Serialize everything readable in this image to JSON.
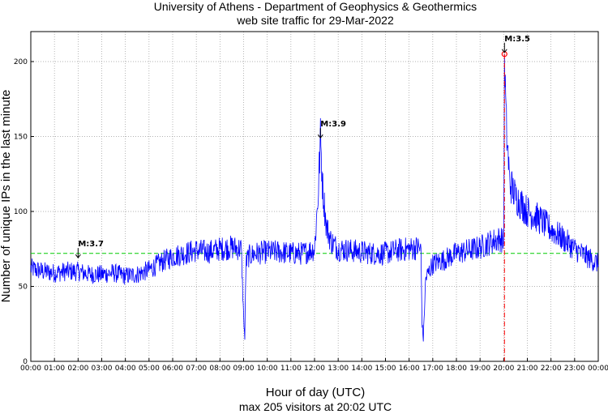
{
  "chart_data": {
    "type": "line",
    "title": "University of Athens - Department of Geophysics & Geothermics",
    "subtitle": "web site traffic for 29-Mar-2022",
    "xlabel": "Hour of day (UTC)",
    "ylabel": "Number of unique IPs in the last minute",
    "footer": "max 205 visitors at 20:02 UTC",
    "xlim": [
      0,
      24
    ],
    "ylim": [
      0,
      220
    ],
    "x_tick_labels": [
      "00:00",
      "01:00",
      "02:00",
      "03:00",
      "04:00",
      "05:00",
      "06:00",
      "07:00",
      "08:00",
      "09:00",
      "10:00",
      "11:00",
      "12:00",
      "13:00",
      "14:00",
      "15:00",
      "16:00",
      "17:00",
      "18:00",
      "19:00",
      "20:00",
      "21:00",
      "22:00",
      "23:00",
      "00:00"
    ],
    "y_ticks": [
      0,
      50,
      100,
      150,
      200
    ],
    "y_tick_labels": [
      "0",
      "50",
      "100",
      "150",
      "200"
    ],
    "grid": true,
    "mean_line": 72,
    "series": [
      {
        "color": "#0000ff",
        "x": [
          0,
          0.5,
          1,
          1.5,
          2,
          2.5,
          3,
          3.5,
          4,
          4.5,
          5,
          5.5,
          6,
          6.5,
          7,
          7.5,
          8,
          8.5,
          8.9,
          9.0,
          9.05,
          9.1,
          9.2,
          9.5,
          10,
          10.5,
          11,
          11.5,
          12,
          12.15,
          12.25,
          12.35,
          12.5,
          12.7,
          13,
          13.5,
          14,
          14.5,
          15,
          15.5,
          16,
          16.4,
          16.5,
          16.55,
          16.6,
          16.7,
          16.9,
          17,
          17.5,
          18,
          18.5,
          19,
          19.5,
          19.9,
          20.0,
          20.033,
          20.1,
          20.25,
          20.5,
          21,
          21.5,
          22,
          22.5,
          23,
          23.5,
          24
        ],
        "y": [
          62,
          60,
          59,
          60,
          60,
          58,
          58,
          59,
          57,
          58,
          61,
          66,
          70,
          72,
          74,
          73,
          75,
          76,
          75,
          30,
          15,
          65,
          70,
          72,
          73,
          73,
          72,
          72,
          75,
          110,
          148,
          115,
          90,
          80,
          75,
          74,
          73,
          72,
          72,
          74,
          75,
          76,
          74,
          25,
          15,
          55,
          62,
          65,
          68,
          72,
          74,
          76,
          80,
          82,
          78,
          205,
          160,
          120,
          110,
          100,
          95,
          88,
          82,
          75,
          70,
          65
        ]
      }
    ],
    "annotations": [
      {
        "label": "M:3.7",
        "x": 2.0,
        "y": 68
      },
      {
        "label": "M:3.9",
        "x": 12.25,
        "y": 148
      },
      {
        "label": "M:3.5",
        "x": 20.033,
        "y": 205
      }
    ],
    "max_marker": {
      "x": 20.033,
      "y": 205,
      "color": "#ff0000"
    },
    "colors": {
      "series": "#0000ff",
      "mean_line": "#00cc00",
      "max_line": "#ff0000",
      "grid": "#999999"
    }
  }
}
